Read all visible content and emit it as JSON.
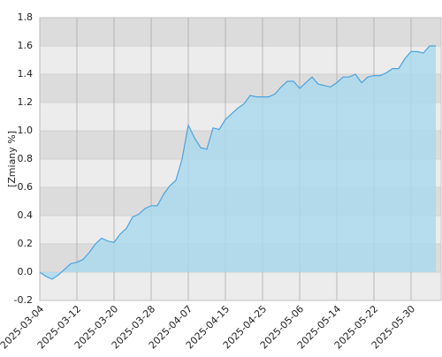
{
  "chart_data": {
    "type": "area",
    "y_label": "[Zmiany %]",
    "categories": [
      "2025-03-04",
      null,
      null,
      null,
      null,
      null,
      "2025-03-12",
      null,
      null,
      null,
      null,
      null,
      "2025-03-20",
      null,
      null,
      null,
      null,
      null,
      "2025-03-28",
      null,
      null,
      null,
      null,
      null,
      "2025-04-07",
      null,
      null,
      null,
      null,
      null,
      "2025-04-15",
      null,
      null,
      null,
      null,
      null,
      "2025-04-25",
      null,
      null,
      null,
      null,
      null,
      "2025-05-06",
      null,
      null,
      null,
      null,
      null,
      "2025-05-14",
      null,
      null,
      null,
      null,
      null,
      "2025-05-22",
      null,
      null,
      null,
      null,
      null,
      "2025-05-30",
      null,
      null,
      null,
      null
    ],
    "values": [
      0.0,
      -0.03,
      -0.05,
      -0.02,
      0.02,
      0.06,
      0.07,
      0.09,
      0.14,
      0.2,
      0.24,
      0.22,
      0.21,
      0.27,
      0.31,
      0.39,
      0.41,
      0.45,
      0.47,
      0.47,
      0.55,
      0.61,
      0.65,
      0.8,
      1.04,
      0.95,
      0.88,
      0.87,
      1.02,
      1.01,
      1.08,
      1.12,
      1.16,
      1.19,
      1.25,
      1.24,
      1.24,
      1.24,
      1.26,
      1.31,
      1.35,
      1.35,
      1.3,
      1.34,
      1.38,
      1.33,
      1.32,
      1.31,
      1.34,
      1.38,
      1.38,
      1.4,
      1.34,
      1.38,
      1.39,
      1.39,
      1.41,
      1.44,
      1.44,
      1.51,
      1.56,
      1.56,
      1.55,
      1.6,
      1.6
    ],
    "color": "#4aa3df",
    "fill_color": "#a9d9ee",
    "ylim": [
      -0.2,
      1.8
    ],
    "yticks": [
      -0.2,
      {
        "value": 0,
        "label": "0.0"
      },
      0.2,
      0.4,
      0.6,
      0.8,
      {
        "value": 1,
        "label": "1.0"
      },
      1.2,
      1.4,
      1.6,
      1.8
    ],
    "grid": true
  }
}
